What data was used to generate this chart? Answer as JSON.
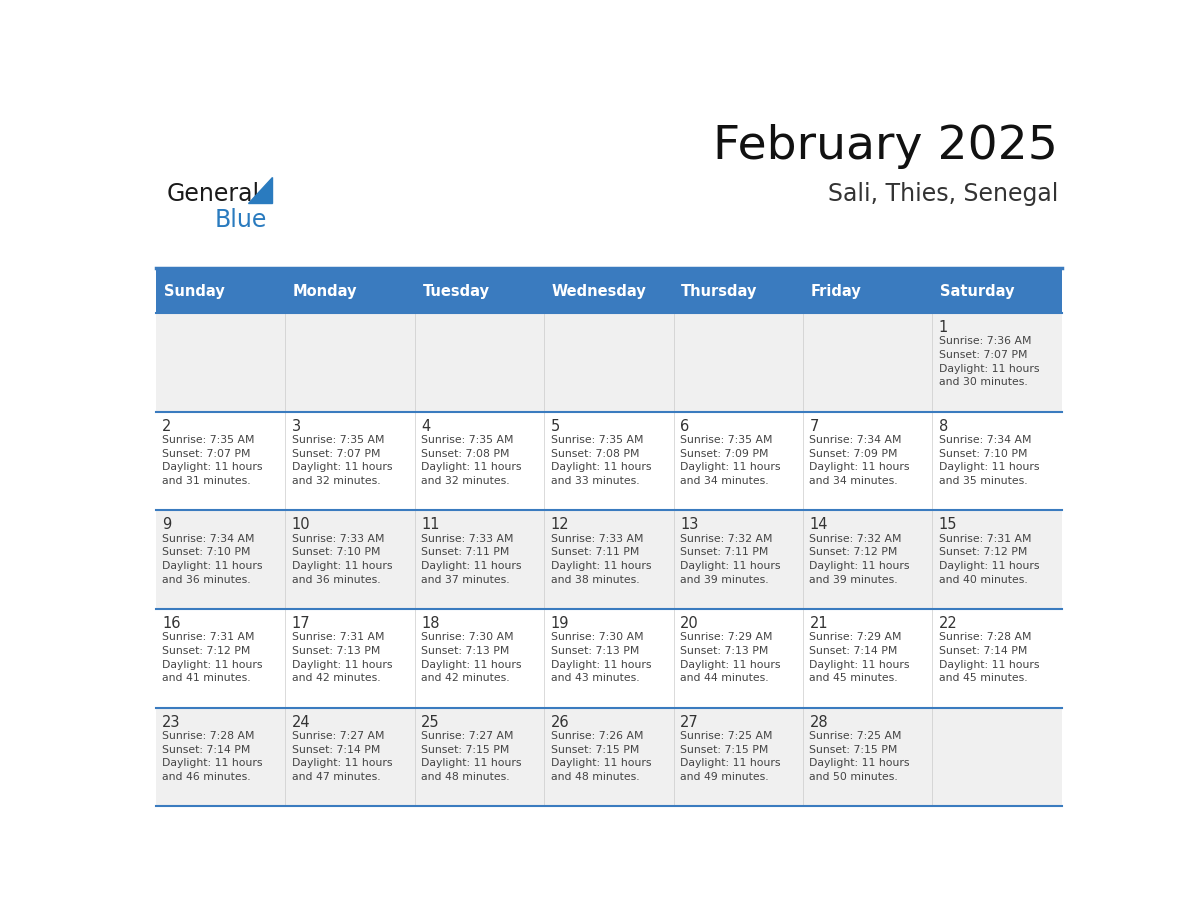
{
  "title": "February 2025",
  "subtitle": "Sali, Thies, Senegal",
  "header_color": "#3a7bbf",
  "header_text_color": "#ffffff",
  "header_days": [
    "Sunday",
    "Monday",
    "Tuesday",
    "Wednesday",
    "Thursday",
    "Friday",
    "Saturday"
  ],
  "cell_bg_even": "#f0f0f0",
  "cell_bg_odd": "#ffffff",
  "grid_line_color": "#3a7bbf",
  "text_color": "#444444",
  "day_num_color": "#333333",
  "logo_general_color": "#1a1a1a",
  "logo_blue_color": "#2a7bbf",
  "weeks": [
    [
      {
        "day": null,
        "info": null
      },
      {
        "day": null,
        "info": null
      },
      {
        "day": null,
        "info": null
      },
      {
        "day": null,
        "info": null
      },
      {
        "day": null,
        "info": null
      },
      {
        "day": null,
        "info": null
      },
      {
        "day": 1,
        "info": "Sunrise: 7:36 AM\nSunset: 7:07 PM\nDaylight: 11 hours\nand 30 minutes."
      }
    ],
    [
      {
        "day": 2,
        "info": "Sunrise: 7:35 AM\nSunset: 7:07 PM\nDaylight: 11 hours\nand 31 minutes."
      },
      {
        "day": 3,
        "info": "Sunrise: 7:35 AM\nSunset: 7:07 PM\nDaylight: 11 hours\nand 32 minutes."
      },
      {
        "day": 4,
        "info": "Sunrise: 7:35 AM\nSunset: 7:08 PM\nDaylight: 11 hours\nand 32 minutes."
      },
      {
        "day": 5,
        "info": "Sunrise: 7:35 AM\nSunset: 7:08 PM\nDaylight: 11 hours\nand 33 minutes."
      },
      {
        "day": 6,
        "info": "Sunrise: 7:35 AM\nSunset: 7:09 PM\nDaylight: 11 hours\nand 34 minutes."
      },
      {
        "day": 7,
        "info": "Sunrise: 7:34 AM\nSunset: 7:09 PM\nDaylight: 11 hours\nand 34 minutes."
      },
      {
        "day": 8,
        "info": "Sunrise: 7:34 AM\nSunset: 7:10 PM\nDaylight: 11 hours\nand 35 minutes."
      }
    ],
    [
      {
        "day": 9,
        "info": "Sunrise: 7:34 AM\nSunset: 7:10 PM\nDaylight: 11 hours\nand 36 minutes."
      },
      {
        "day": 10,
        "info": "Sunrise: 7:33 AM\nSunset: 7:10 PM\nDaylight: 11 hours\nand 36 minutes."
      },
      {
        "day": 11,
        "info": "Sunrise: 7:33 AM\nSunset: 7:11 PM\nDaylight: 11 hours\nand 37 minutes."
      },
      {
        "day": 12,
        "info": "Sunrise: 7:33 AM\nSunset: 7:11 PM\nDaylight: 11 hours\nand 38 minutes."
      },
      {
        "day": 13,
        "info": "Sunrise: 7:32 AM\nSunset: 7:11 PM\nDaylight: 11 hours\nand 39 minutes."
      },
      {
        "day": 14,
        "info": "Sunrise: 7:32 AM\nSunset: 7:12 PM\nDaylight: 11 hours\nand 39 minutes."
      },
      {
        "day": 15,
        "info": "Sunrise: 7:31 AM\nSunset: 7:12 PM\nDaylight: 11 hours\nand 40 minutes."
      }
    ],
    [
      {
        "day": 16,
        "info": "Sunrise: 7:31 AM\nSunset: 7:12 PM\nDaylight: 11 hours\nand 41 minutes."
      },
      {
        "day": 17,
        "info": "Sunrise: 7:31 AM\nSunset: 7:13 PM\nDaylight: 11 hours\nand 42 minutes."
      },
      {
        "day": 18,
        "info": "Sunrise: 7:30 AM\nSunset: 7:13 PM\nDaylight: 11 hours\nand 42 minutes."
      },
      {
        "day": 19,
        "info": "Sunrise: 7:30 AM\nSunset: 7:13 PM\nDaylight: 11 hours\nand 43 minutes."
      },
      {
        "day": 20,
        "info": "Sunrise: 7:29 AM\nSunset: 7:13 PM\nDaylight: 11 hours\nand 44 minutes."
      },
      {
        "day": 21,
        "info": "Sunrise: 7:29 AM\nSunset: 7:14 PM\nDaylight: 11 hours\nand 45 minutes."
      },
      {
        "day": 22,
        "info": "Sunrise: 7:28 AM\nSunset: 7:14 PM\nDaylight: 11 hours\nand 45 minutes."
      }
    ],
    [
      {
        "day": 23,
        "info": "Sunrise: 7:28 AM\nSunset: 7:14 PM\nDaylight: 11 hours\nand 46 minutes."
      },
      {
        "day": 24,
        "info": "Sunrise: 7:27 AM\nSunset: 7:14 PM\nDaylight: 11 hours\nand 47 minutes."
      },
      {
        "day": 25,
        "info": "Sunrise: 7:27 AM\nSunset: 7:15 PM\nDaylight: 11 hours\nand 48 minutes."
      },
      {
        "day": 26,
        "info": "Sunrise: 7:26 AM\nSunset: 7:15 PM\nDaylight: 11 hours\nand 48 minutes."
      },
      {
        "day": 27,
        "info": "Sunrise: 7:25 AM\nSunset: 7:15 PM\nDaylight: 11 hours\nand 49 minutes."
      },
      {
        "day": 28,
        "info": "Sunrise: 7:25 AM\nSunset: 7:15 PM\nDaylight: 11 hours\nand 50 minutes."
      },
      {
        "day": null,
        "info": null
      }
    ]
  ]
}
